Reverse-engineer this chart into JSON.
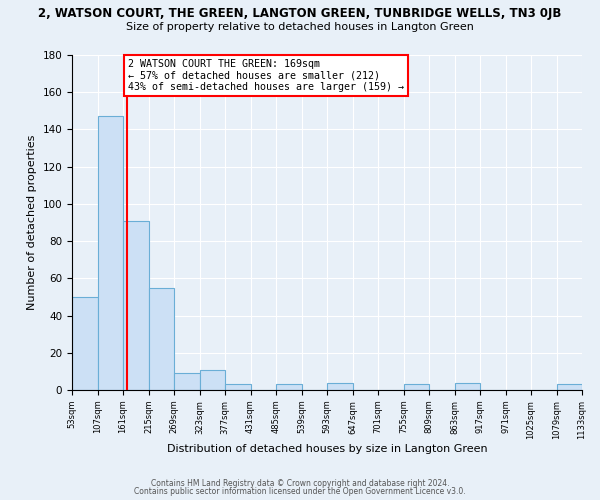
{
  "title": "2, WATSON COURT, THE GREEN, LANGTON GREEN, TUNBRIDGE WELLS, TN3 0JB",
  "subtitle": "Size of property relative to detached houses in Langton Green",
  "xlabel": "Distribution of detached houses by size in Langton Green",
  "ylabel": "Number of detached properties",
  "bin_edges": [
    53,
    107,
    161,
    215,
    269,
    323,
    377,
    431,
    485,
    539,
    593,
    647,
    701,
    755,
    809,
    863,
    917,
    971,
    1025,
    1079,
    1133
  ],
  "bin_heights": [
    50,
    147,
    91,
    55,
    9,
    11,
    3,
    0,
    3,
    0,
    4,
    0,
    0,
    3,
    0,
    4,
    0,
    0,
    0,
    3
  ],
  "bar_color": "#cce0f5",
  "bar_edge_color": "#6aaed6",
  "reference_line_x": 169,
  "reference_line_color": "red",
  "annotation_title": "2 WATSON COURT THE GREEN: 169sqm",
  "annotation_line1": "← 57% of detached houses are smaller (212)",
  "annotation_line2": "43% of semi-detached houses are larger (159) →",
  "annotation_box_edge_color": "red",
  "ylim": [
    0,
    180
  ],
  "yticks": [
    0,
    20,
    40,
    60,
    80,
    100,
    120,
    140,
    160,
    180
  ],
  "footer1": "Contains HM Land Registry data © Crown copyright and database right 2024.",
  "footer2": "Contains public sector information licensed under the Open Government Licence v3.0.",
  "fig_background_color": "#e8f0f8",
  "axes_background_color": "#e8f0f8"
}
